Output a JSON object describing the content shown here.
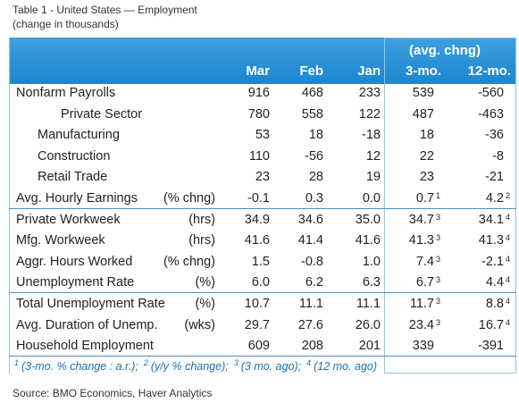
{
  "title": "Table 1 - United States — Employment",
  "subtitle": "(change in thousands)",
  "table": {
    "group_header": "(avg. chng)",
    "columns": [
      "Mar",
      "Feb",
      "Jan",
      "3-mo.",
      "12-mo."
    ],
    "rows": [
      {
        "label": "Nonfarm Payrolls",
        "cells": [
          "916",
          "468",
          "233",
          "539",
          "-560"
        ]
      },
      {
        "label": "Private Sector",
        "cells": [
          "780",
          "558",
          "122",
          "487",
          "-463"
        ]
      },
      {
        "label": "Manufacturing",
        "cells": [
          "53",
          "18",
          "-18",
          "18",
          "-36"
        ]
      },
      {
        "label": "Construction",
        "cells": [
          "110",
          "-56",
          "12",
          "22",
          "-8"
        ]
      },
      {
        "label": "Retail Trade",
        "cells": [
          "23",
          "28",
          "19",
          "23",
          "-21"
        ]
      },
      {
        "label": "Avg. Hourly Earnings",
        "unit": "(% chng)",
        "cells": [
          "-0.1",
          "0.3",
          "0.0",
          "0.7",
          "4.2"
        ],
        "notes": [
          "1",
          "2"
        ]
      },
      {
        "label": "Private Workweek",
        "unit": "(hrs)",
        "cells": [
          "34.9",
          "34.6",
          "35.0",
          "34.7",
          "34.1"
        ],
        "notes": [
          "3",
          "4"
        ]
      },
      {
        "label": "Mfg. Workweek",
        "unit": "(hrs)",
        "cells": [
          "41.6",
          "41.4",
          "41.6",
          "41.3",
          "41.3"
        ],
        "notes": [
          "3",
          "4"
        ]
      },
      {
        "label": "Aggr. Hours Worked",
        "unit": "(% chng)",
        "cells": [
          "1.5",
          "-0.8",
          "1.0",
          "7.4",
          "-2.1"
        ],
        "notes": [
          "3",
          "4"
        ]
      },
      {
        "label": "Unemployment Rate",
        "unit": "(%)",
        "cells": [
          "6.0",
          "6.2",
          "6.3",
          "6.7",
          "4.4"
        ],
        "notes": [
          "3",
          "4"
        ]
      },
      {
        "label": "Total Unemployment Rate",
        "unit": "(%)",
        "cells": [
          "10.7",
          "11.1",
          "11.1",
          "11.7",
          "8.8"
        ],
        "notes": [
          "3",
          "4"
        ]
      },
      {
        "label": "Avg. Duration of Unemp.",
        "unit": "(wks)",
        "cells": [
          "29.7",
          "27.6",
          "26.0",
          "23.4",
          "16.7"
        ],
        "notes": [
          "3",
          "4"
        ]
      },
      {
        "label": "Household Employment",
        "cells": [
          "609",
          "208",
          "201",
          "339",
          "-391"
        ]
      }
    ],
    "footnotes": [
      {
        "mark": "1",
        "text": "(3-mo. % change : a.r.);"
      },
      {
        "mark": "2",
        "text": "(y/y % change);"
      },
      {
        "mark": "3",
        "text": "(3 mo. ago);"
      },
      {
        "mark": "4",
        "text": "(12 mo. ago)"
      }
    ]
  },
  "source": "Source: BMO Economics, Haver Analytics"
}
